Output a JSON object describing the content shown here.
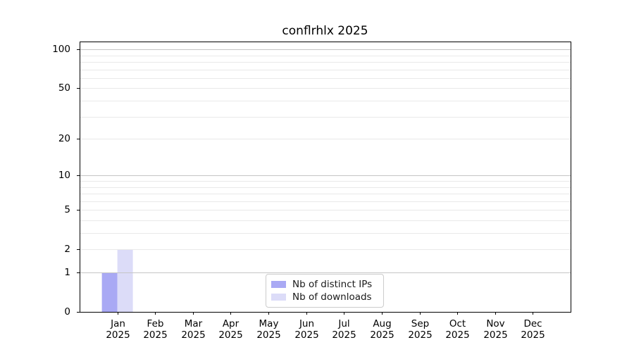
{
  "chart_data": {
    "type": "bar",
    "title": "conflrhlx 2025",
    "x_axis": {
      "ticks": [
        {
          "month": "Jan",
          "year": "2025"
        },
        {
          "month": "Feb",
          "year": "2025"
        },
        {
          "month": "Mar",
          "year": "2025"
        },
        {
          "month": "Apr",
          "year": "2025"
        },
        {
          "month": "May",
          "year": "2025"
        },
        {
          "month": "Jun",
          "year": "2025"
        },
        {
          "month": "Jul",
          "year": "2025"
        },
        {
          "month": "Aug",
          "year": "2025"
        },
        {
          "month": "Sep",
          "year": "2025"
        },
        {
          "month": "Oct",
          "year": "2025"
        },
        {
          "month": "Nov",
          "year": "2025"
        },
        {
          "month": "Dec",
          "year": "2025"
        }
      ]
    },
    "y_axis": {
      "scale": "log1p",
      "lim": [
        0,
        100
      ],
      "ticks": [
        {
          "label": "0",
          "value": 0
        },
        {
          "label": "1",
          "value": 1
        },
        {
          "label": "2",
          "value": 2
        },
        {
          "label": "5",
          "value": 5
        },
        {
          "label": "10",
          "value": 10
        },
        {
          "label": "20",
          "value": 20
        },
        {
          "label": "50",
          "value": 50
        },
        {
          "label": "100",
          "value": 100
        }
      ],
      "major_gridlines": [
        1,
        10,
        100
      ],
      "minor_gridlines": [
        2,
        3,
        4,
        5,
        6,
        7,
        8,
        9,
        20,
        30,
        40,
        50,
        60,
        70,
        80,
        90
      ]
    },
    "series": [
      {
        "name": "Nb of distinct IPs",
        "color": "#a9a9f4",
        "values": [
          1,
          0,
          0,
          0,
          0,
          0,
          0,
          0,
          0,
          0,
          0,
          0
        ]
      },
      {
        "name": "Nb of downloads",
        "color": "#dcdcf8",
        "values": [
          2,
          0,
          0,
          0,
          0,
          0,
          0,
          0,
          0,
          0,
          0,
          0
        ]
      }
    ],
    "legend_position": "lower center",
    "grid": true
  },
  "colors": {
    "major_grid": "#c5c5c5",
    "minor_grid": "#e9e9e9",
    "spine": "#000000",
    "background": "#ffffff"
  }
}
